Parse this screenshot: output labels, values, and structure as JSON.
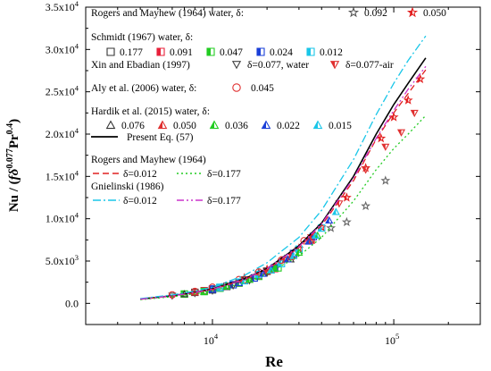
{
  "chart_data": {
    "type": "scatter",
    "xlabel": "Re",
    "ylabel": "Nu / (fδ0.077Pr0.4)",
    "ylabel_parts": {
      "main": "Nu / (",
      "f": "f",
      "delta": "δ",
      "sup1": "0.077",
      "pr": "Pr",
      "sup2": "0.4",
      "close": ")"
    },
    "x_scale": "log",
    "xlim": [
      2000,
      300000
    ],
    "ylim": [
      -2500,
      35000
    ],
    "x_ticks": [
      {
        "value": 10000,
        "base": "10",
        "exp": "4"
      },
      {
        "value": 100000,
        "base": "10",
        "exp": "5"
      }
    ],
    "y_ticks": [
      {
        "value": 0,
        "label": "0.0"
      },
      {
        "value": 5000,
        "label": "5.0x10",
        "exp": "3"
      },
      {
        "value": 10000,
        "label": "1.0x10",
        "exp": "4"
      },
      {
        "value": 15000,
        "label": "1.5x10",
        "exp": "4"
      },
      {
        "value": 20000,
        "label": "2.0x10",
        "exp": "4"
      },
      {
        "value": 25000,
        "label": "2.5x10",
        "exp": "4"
      },
      {
        "value": 30000,
        "label": "3.0x10",
        "exp": "4"
      },
      {
        "value": 35000,
        "label": "3.5x10",
        "exp": "4"
      }
    ],
    "legend": {
      "placement": "top-left",
      "groups": [
        {
          "title": "Rogers and Mayhew (1964) water, δ:",
          "items": [
            {
              "marker": "star-open",
              "color": "#555555",
              "label": "0.092"
            },
            {
              "marker": "star-half",
              "color": "#e32020",
              "label": "0.050"
            }
          ]
        },
        {
          "title": "Schmidt (1967) water, δ:",
          "items": [
            {
              "marker": "square-open",
              "color": "#333333",
              "label": "0.177"
            },
            {
              "marker": "square-half",
              "color": "#e8203a",
              "label": "0.091"
            },
            {
              "marker": "square-half",
              "color": "#22cc22",
              "label": "0.047"
            },
            {
              "marker": "square-half",
              "color": "#1a3fd8",
              "label": "0.024"
            },
            {
              "marker": "square-half",
              "color": "#19c6e8",
              "label": "0.012"
            }
          ]
        },
        {
          "title": "Xin and Ebadian (1997)",
          "items": [
            {
              "marker": "triangle-down-open",
              "color": "#444444",
              "label": "δ=0.077, water"
            },
            {
              "marker": "triangle-down-half",
              "color": "#e03030",
              "label": "δ=0.077-air"
            }
          ]
        },
        {
          "title": "Aly et al. (2006) water, δ:",
          "items": [
            {
              "marker": "circle-open",
              "color": "#e03030",
              "label": "0.045"
            }
          ]
        },
        {
          "title": "Hardik et al. (2015) water, δ:",
          "items": [
            {
              "marker": "triangle-up-open",
              "color": "#333333",
              "label": "0.076"
            },
            {
              "marker": "triangle-up-half",
              "color": "#e03030",
              "label": "0.050"
            },
            {
              "marker": "triangle-up-half",
              "color": "#22cc22",
              "label": "0.036"
            },
            {
              "marker": "triangle-up-half",
              "color": "#1a3fd8",
              "label": "0.022"
            },
            {
              "marker": "triangle-up-half",
              "color": "#19c6e8",
              "label": "0.015"
            }
          ]
        },
        {
          "title": "",
          "items": [
            {
              "marker": "line-solid",
              "color": "#000000",
              "label": "Present Eq. (57)"
            }
          ]
        },
        {
          "title": "Rogers and Mayhew (1964)",
          "items": [
            {
              "marker": "line-dash",
              "color": "#e02020",
              "label": "δ=0.012"
            },
            {
              "marker": "line-dot",
              "color": "#22cc22",
              "label": "δ=0.177"
            }
          ]
        },
        {
          "title": "Gnielinski (1986)",
          "items": [
            {
              "marker": "line-dashdot",
              "color": "#19c6e8",
              "label": "δ=0.012"
            },
            {
              "marker": "line-dashdotdot",
              "color": "#cc33cc",
              "label": "δ=0.177"
            }
          ]
        }
      ]
    },
    "lines": [
      {
        "legend": "Present Eq. (57)",
        "color": "#000000",
        "dash": "",
        "x": [
          4000,
          6000,
          8000,
          10000,
          15000,
          20000,
          30000,
          40000,
          60000,
          80000,
          100000,
          120000,
          150000
        ],
        "y": [
          500,
          900,
          1300,
          1700,
          2900,
          4100,
          6800,
          9500,
          15000,
          20000,
          23500,
          26000,
          29000
        ]
      },
      {
        "legend": "Rogers and Mayhew (1964) δ=0.012",
        "color": "#e02020",
        "dash": "7,4",
        "x": [
          4000,
          6000,
          8000,
          10000,
          15000,
          20000,
          30000,
          40000,
          60000,
          80000,
          100000,
          120000,
          150000
        ],
        "y": [
          480,
          850,
          1250,
          1650,
          2800,
          4000,
          6600,
          9200,
          14500,
          19400,
          22500,
          24800,
          27600
        ]
      },
      {
        "legend": "Rogers and Mayhew (1964) δ=0.177",
        "color": "#22cc22",
        "dash": "2,3",
        "x": [
          4000,
          6000,
          8000,
          10000,
          15000,
          20000,
          30000,
          40000,
          60000,
          80000,
          100000,
          120000,
          150000
        ],
        "y": [
          440,
          780,
          1120,
          1470,
          2450,
          3500,
          5600,
          7800,
          12100,
          15800,
          18300,
          20000,
          22200
        ]
      },
      {
        "legend": "Gnielinski (1986) δ=0.012",
        "color": "#19c6e8",
        "dash": "9,3,2,3",
        "x": [
          4000,
          6000,
          8000,
          10000,
          15000,
          20000,
          30000,
          40000,
          60000,
          80000,
          100000,
          120000,
          150000
        ],
        "y": [
          560,
          1000,
          1450,
          1900,
          3300,
          4800,
          7800,
          11000,
          17000,
          22300,
          26000,
          28700,
          31600
        ]
      },
      {
        "legend": "Gnielinski (1986) δ=0.177",
        "color": "#cc33cc",
        "dash": "8,3,2,3,2,3",
        "x": [
          4000,
          6000,
          8000,
          10000,
          15000,
          20000,
          30000,
          40000,
          60000,
          80000,
          100000,
          120000,
          150000
        ],
        "y": [
          500,
          880,
          1280,
          1680,
          2870,
          4100,
          6700,
          9400,
          14800,
          19500,
          22800,
          25300,
          28000
        ]
      }
    ],
    "series": [
      {
        "legend": "Rogers and Mayhew (1964) water, δ: 0.092",
        "marker": "star-open",
        "color": "#666666",
        "x": [
          12000,
          18000,
          25000,
          35000,
          45000,
          55000,
          70000,
          90000
        ],
        "y": [
          2000,
          3600,
          5200,
          7500,
          8900,
          9600,
          11500,
          14500
        ]
      },
      {
        "legend": "Rogers and Mayhew (1964) water, δ: 0.050",
        "marker": "star-half",
        "color": "#e32020",
        "x": [
          15000,
          20000,
          30000,
          40000,
          55000,
          70000,
          85000,
          100000,
          120000,
          140000
        ],
        "y": [
          3000,
          4000,
          6500,
          9000,
          12500,
          16000,
          19500,
          22000,
          24000,
          26500
        ]
      },
      {
        "legend": "Schmidt (1967) water, δ: 0.177",
        "marker": "square-open",
        "color": "#333333",
        "x": [
          8000,
          10000,
          12000,
          15000,
          20000
        ],
        "y": [
          1300,
          1600,
          2000,
          2700,
          3800
        ]
      },
      {
        "legend": "Schmidt (1967) water, δ: 0.091",
        "marker": "square-half",
        "color": "#e8203a",
        "x": [
          9000,
          11000,
          14000,
          18000,
          22000,
          28000,
          35000
        ],
        "y": [
          1500,
          1800,
          2400,
          3300,
          4100,
          5800,
          7500
        ]
      },
      {
        "legend": "Schmidt (1967) water, δ: 0.047",
        "marker": "square-half",
        "color": "#22cc22",
        "x": [
          7000,
          9000,
          11000,
          14000,
          18000,
          23000
        ],
        "y": [
          1100,
          1400,
          1800,
          2400,
          3200,
          4200
        ]
      },
      {
        "legend": "Schmidt (1967) water, δ: 0.024",
        "marker": "square-half",
        "color": "#1a3fd8",
        "x": [
          10000,
          13000,
          17000,
          22000,
          28000,
          36000
        ],
        "y": [
          1700,
          2200,
          3000,
          4200,
          5900,
          7900
        ]
      },
      {
        "legend": "Schmidt (1967) water, δ: 0.012",
        "marker": "square-half",
        "color": "#19c6e8",
        "x": [
          11000,
          14000,
          18000,
          24000,
          30000,
          40000
        ],
        "y": [
          1900,
          2500,
          3400,
          4700,
          6400,
          8900
        ]
      },
      {
        "legend": "Xin and Ebadian (1997) δ=0.077, water",
        "marker": "triangle-down-open",
        "color": "#444444",
        "x": [
          6000,
          8000,
          10000,
          13000,
          16000,
          20000
        ],
        "y": [
          900,
          1200,
          1500,
          2100,
          2700,
          3600
        ]
      },
      {
        "legend": "Xin and Ebadian (1997) δ=0.077-air",
        "marker": "triangle-down-half",
        "color": "#e03030",
        "x": [
          25000,
          35000,
          50000,
          70000,
          90000,
          110000,
          130000
        ],
        "y": [
          5200,
          7800,
          11800,
          15800,
          18500,
          20200,
          22500
        ]
      },
      {
        "legend": "Aly et al. (2006) water, δ: 0.045",
        "marker": "circle-open",
        "color": "#e03030",
        "x": [
          6000,
          8000,
          10000,
          14000,
          18000,
          24000,
          32000
        ],
        "y": [
          1000,
          1400,
          1900,
          2800,
          3700,
          5100,
          7400
        ]
      },
      {
        "legend": "Hardik et al. (2015) water, δ: 0.076",
        "marker": "triangle-up-open",
        "color": "#333333",
        "x": [
          7000,
          9000,
          12000,
          16000,
          21000,
          27000
        ],
        "y": [
          1100,
          1400,
          2000,
          2800,
          3900,
          5200
        ]
      },
      {
        "legend": "Hardik et al. (2015) water, δ: 0.050",
        "marker": "triangle-up-half",
        "color": "#e03030",
        "x": [
          8000,
          11000,
          15000,
          20000,
          27000,
          35000
        ],
        "y": [
          1300,
          1800,
          2700,
          3800,
          5500,
          7400
        ]
      },
      {
        "legend": "Hardik et al. (2015) water, δ: 0.036",
        "marker": "triangle-up-half",
        "color": "#22cc22",
        "x": [
          9000,
          12000,
          16000,
          22000,
          30000,
          38000
        ],
        "y": [
          1400,
          2000,
          2800,
          4100,
          6000,
          8000
        ]
      },
      {
        "legend": "Hardik et al. (2015) water, δ: 0.022",
        "marker": "triangle-up-half",
        "color": "#1a3fd8",
        "x": [
          10000,
          14000,
          19000,
          26000,
          34000,
          44000
        ],
        "y": [
          1600,
          2400,
          3500,
          5200,
          7300,
          9800
        ]
      },
      {
        "legend": "Hardik et al. (2015) water, δ: 0.015",
        "marker": "triangle-up-half",
        "color": "#19c6e8",
        "x": [
          11000,
          15000,
          21000,
          28000,
          37000,
          48000
        ],
        "y": [
          1800,
          2600,
          3900,
          5600,
          8000,
          10800
        ]
      }
    ]
  }
}
